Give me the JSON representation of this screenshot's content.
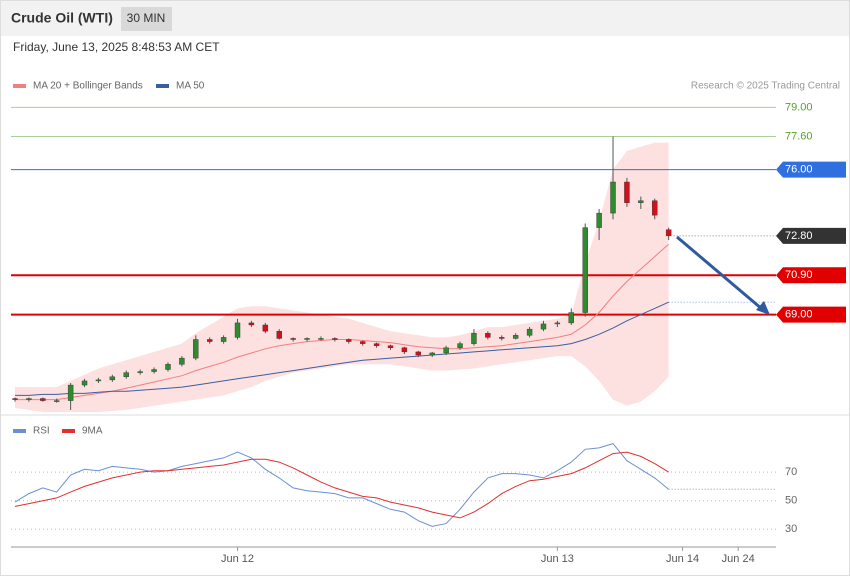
{
  "header": {
    "title": "Crude Oil (WTI)",
    "timeframe": "30 MIN",
    "date": "Friday, June 13, 2025 8:48:53 AM CET",
    "credit": "Research © 2025 Trading Central"
  },
  "chart_data": [
    {
      "type": "candlestick",
      "categories": [
        null,
        null,
        null,
        null,
        null,
        null,
        null,
        null,
        null,
        null,
        null,
        null,
        null,
        null,
        null,
        null,
        "Jun 12",
        null,
        null,
        null,
        null,
        null,
        null,
        null,
        null,
        null,
        null,
        null,
        null,
        null,
        null,
        null,
        null,
        null,
        null,
        null,
        null,
        null,
        null,
        "Jun 13",
        null,
        null,
        null,
        null,
        null,
        null,
        null,
        null,
        "Jun 14",
        null,
        null,
        null,
        "Jun 24",
        null,
        null
      ],
      "open": [
        64.95,
        64.9,
        64.95,
        64.85,
        64.85,
        65.6,
        65.8,
        65.85,
        66.0,
        66.2,
        66.25,
        66.35,
        66.6,
        66.9,
        67.8,
        67.7,
        67.9,
        68.6,
        68.5,
        68.2,
        67.85,
        67.8,
        67.85,
        67.85,
        67.8,
        67.7,
        67.6,
        67.5,
        67.4,
        67.2,
        67.05,
        67.15,
        67.4,
        67.6,
        68.1,
        67.9,
        67.85,
        68.0,
        68.3,
        68.55,
        68.6,
        69.1,
        73.2,
        73.9,
        75.4,
        74.4,
        74.5,
        73.1,
        null,
        null,
        null,
        null,
        null,
        null,
        null
      ],
      "high": [
        65.0,
        65.0,
        65.0,
        64.95,
        65.7,
        65.9,
        65.95,
        66.1,
        66.3,
        66.35,
        66.45,
        66.7,
        67.0,
        68.0,
        67.9,
        68.0,
        68.8,
        68.7,
        68.6,
        68.3,
        67.9,
        67.9,
        67.95,
        67.9,
        67.85,
        67.75,
        67.65,
        67.55,
        67.45,
        67.25,
        67.2,
        67.5,
        67.7,
        68.3,
        68.2,
        68.0,
        68.1,
        68.4,
        68.7,
        68.7,
        69.3,
        73.4,
        74.1,
        77.6,
        75.6,
        74.7,
        74.6,
        73.2,
        null,
        null,
        null,
        null,
        null,
        null,
        null
      ],
      "low": [
        64.8,
        64.8,
        64.8,
        64.75,
        64.4,
        65.5,
        65.7,
        65.75,
        65.9,
        66.1,
        66.15,
        66.25,
        66.5,
        66.8,
        67.6,
        67.6,
        67.8,
        68.4,
        68.1,
        67.8,
        67.7,
        67.7,
        67.75,
        67.7,
        67.6,
        67.5,
        67.4,
        67.3,
        67.1,
        66.95,
        66.95,
        67.05,
        67.3,
        67.5,
        67.8,
        67.75,
        67.8,
        67.9,
        68.2,
        68.4,
        68.5,
        68.9,
        72.6,
        73.6,
        74.2,
        74.1,
        73.6,
        72.6,
        null,
        null,
        null,
        null,
        null,
        null,
        null
      ],
      "close": [
        64.9,
        64.95,
        64.85,
        64.85,
        65.6,
        65.8,
        65.85,
        66.0,
        66.2,
        66.25,
        66.35,
        66.6,
        66.9,
        67.8,
        67.7,
        67.9,
        68.6,
        68.5,
        68.2,
        67.85,
        67.8,
        67.85,
        67.85,
        67.8,
        67.7,
        67.6,
        67.5,
        67.4,
        67.2,
        67.05,
        67.15,
        67.4,
        67.6,
        68.1,
        67.9,
        67.85,
        68.0,
        68.3,
        68.55,
        68.6,
        69.1,
        73.2,
        73.9,
        75.4,
        74.4,
        74.5,
        73.8,
        72.8,
        null,
        null,
        null,
        null,
        null,
        null,
        null
      ],
      "up_color": "#2e8b2e",
      "down_color": "#d0101b",
      "series": [
        {
          "name": "MA 20 + Bollinger Bands",
          "color": "#f08080",
          "band_color": "#fde0e0",
          "values": [
            64.9,
            64.9,
            64.9,
            64.9,
            65.0,
            65.1,
            65.2,
            65.3,
            65.45,
            65.6,
            65.75,
            65.9,
            66.05,
            66.3,
            66.5,
            66.7,
            66.95,
            67.15,
            67.35,
            67.5,
            67.6,
            67.7,
            67.75,
            67.8,
            67.8,
            67.75,
            67.7,
            67.65,
            67.55,
            67.45,
            67.4,
            67.35,
            67.35,
            67.4,
            67.45,
            67.5,
            67.6,
            67.7,
            67.8,
            67.9,
            68.05,
            68.5,
            69.1,
            69.9,
            70.6,
            71.2,
            71.8,
            72.4,
            null,
            null,
            null,
            null,
            null,
            null,
            null
          ],
          "upper": [
            65.5,
            65.5,
            65.5,
            65.5,
            65.8,
            66.1,
            66.4,
            66.6,
            66.8,
            67.0,
            67.2,
            67.4,
            67.6,
            68.1,
            68.5,
            68.9,
            69.3,
            69.4,
            69.4,
            69.3,
            69.2,
            69.1,
            69.0,
            68.9,
            68.8,
            68.6,
            68.4,
            68.2,
            68.1,
            68.0,
            67.9,
            67.9,
            68.0,
            68.2,
            68.4,
            68.4,
            68.5,
            68.6,
            68.7,
            68.8,
            69.0,
            71.5,
            73.5,
            76.0,
            76.9,
            77.1,
            77.3,
            77.3,
            null,
            null,
            null,
            null,
            null,
            null,
            null
          ],
          "lower": [
            64.5,
            64.4,
            64.3,
            64.3,
            64.3,
            64.3,
            64.3,
            64.35,
            64.4,
            64.5,
            64.6,
            64.7,
            64.8,
            64.9,
            65.0,
            65.1,
            65.3,
            65.5,
            65.8,
            66.0,
            66.2,
            66.3,
            66.4,
            66.5,
            66.6,
            66.6,
            66.6,
            66.6,
            66.5,
            66.4,
            66.3,
            66.3,
            66.35,
            66.4,
            66.5,
            66.6,
            66.7,
            66.8,
            66.9,
            67.0,
            67.0,
            66.5,
            65.8,
            64.9,
            64.6,
            64.8,
            65.3,
            66.0,
            null,
            null,
            null,
            null,
            null,
            null,
            null
          ]
        },
        {
          "name": "MA 50",
          "color": "#3a5fa0",
          "values": [
            65.1,
            65.1,
            65.15,
            65.15,
            65.2,
            65.2,
            65.25,
            65.3,
            65.3,
            65.35,
            65.4,
            65.45,
            65.5,
            65.6,
            65.7,
            65.8,
            65.9,
            66.0,
            66.1,
            66.2,
            66.3,
            66.4,
            66.5,
            66.6,
            66.7,
            66.8,
            66.85,
            66.9,
            66.95,
            67.0,
            67.05,
            67.1,
            67.15,
            67.2,
            67.25,
            67.3,
            67.35,
            67.4,
            67.45,
            67.5,
            67.6,
            67.8,
            68.05,
            68.35,
            68.7,
            69.0,
            69.3,
            69.6,
            null,
            null,
            null,
            null,
            null,
            null,
            null
          ]
        }
      ],
      "ylim": [
        64.3,
        79.6
      ],
      "levels": [
        {
          "value": 79,
          "label": "79.00",
          "color": "#5aa02c",
          "boxed": false,
          "line": true
        },
        {
          "value": 77.6,
          "label": "77.60",
          "color": "#5aa02c",
          "boxed": false,
          "line": true
        },
        {
          "value": 76,
          "label": "76.00",
          "color": "#2f6fe0",
          "boxed": true,
          "line": true
        },
        {
          "value": 72.8,
          "label": "72.80",
          "color": "#333333",
          "boxed": true,
          "line": false
        },
        {
          "value": 70.9,
          "label": "70.90",
          "color": "#e00000",
          "boxed": true,
          "line": true
        },
        {
          "value": 69,
          "label": "69.00",
          "color": "#e00000",
          "boxed": true,
          "line": true
        }
      ]
    },
    {
      "type": "line",
      "series": [
        {
          "name": "RSI",
          "color": "#6b8fd6",
          "values": [
            49,
            55,
            59,
            56,
            68,
            72,
            71,
            74,
            73,
            72,
            70,
            71,
            74,
            76,
            78,
            80,
            84,
            80,
            72,
            66,
            59,
            57,
            56,
            55,
            52,
            52,
            48,
            44,
            42,
            36,
            32,
            34,
            44,
            56,
            66,
            69,
            69,
            68,
            66,
            71,
            77,
            86,
            87,
            90,
            78,
            72,
            66,
            58,
            null,
            null,
            null,
            null,
            null,
            null,
            null
          ]
        },
        {
          "name": "9MA",
          "color": "#e03030",
          "values": [
            46,
            48,
            50,
            52,
            56,
            60,
            63,
            66,
            68,
            70,
            71,
            71,
            72,
            73,
            74,
            75,
            77,
            79,
            79,
            77,
            73,
            68,
            63,
            59,
            56,
            53,
            52,
            49,
            47,
            45,
            42,
            40,
            38,
            42,
            48,
            55,
            60,
            64,
            65,
            67,
            69,
            73,
            78,
            83,
            84,
            81,
            76,
            70,
            null,
            null,
            null,
            null,
            null,
            null,
            null
          ]
        }
      ],
      "ylim": [
        19,
        103
      ],
      "yticks": [
        70,
        50,
        30
      ]
    }
  ]
}
